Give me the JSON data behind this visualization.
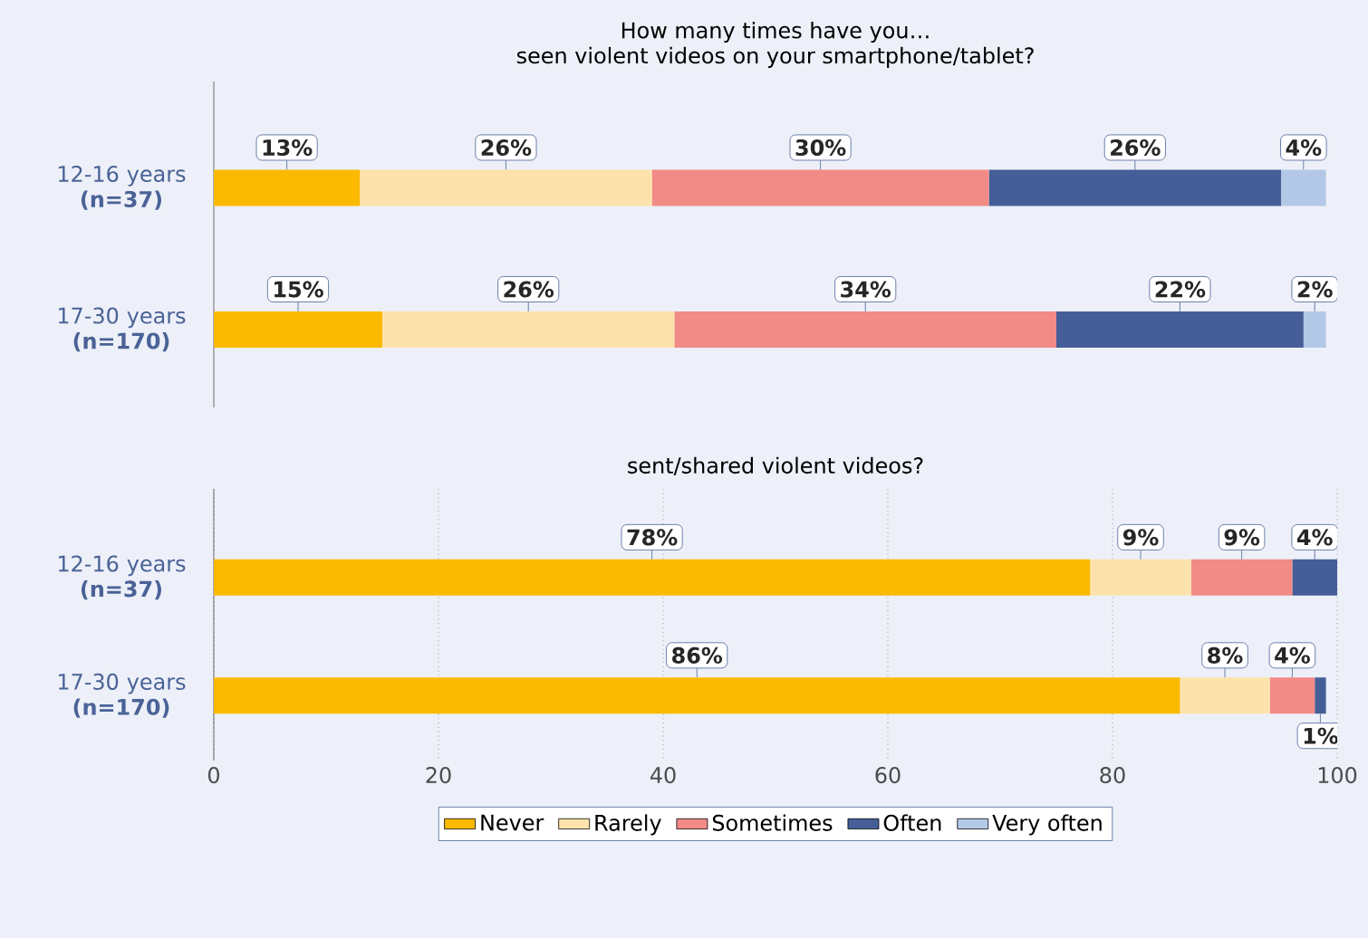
{
  "chart_data": [
    {
      "type": "bar",
      "orientation": "horizontal",
      "stacked": true,
      "title": "How many times have you…",
      "subtitle": "seen violent videos on your smartphone/tablet?",
      "categories": [
        "12-16 years **(n=37)**",
        "17-30 years **(n=170)**"
      ],
      "xlim": [
        0,
        100
      ],
      "xticks": [
        0,
        20,
        40,
        60,
        80,
        100
      ],
      "grid": "x",
      "tick_labels": "y",
      "legend": false,
      "series": [
        {
          "color": "#fbb900",
          "values": [
            13,
            15
          ],
          "value_labels": [
            "13%",
            "15%"
          ]
        },
        {
          "color": "#fde3ab",
          "values": [
            26,
            26
          ],
          "value_labels": [
            "26%",
            "26%"
          ]
        },
        {
          "color": "#f28a86",
          "values": [
            30,
            34
          ],
          "value_labels": [
            "30%",
            "34%"
          ]
        },
        {
          "color": "#455e97",
          "values": [
            26,
            22
          ],
          "value_labels": [
            "26%",
            "22%"
          ]
        },
        {
          "color": "#b3c8e6",
          "values": [
            4,
            2
          ],
          "value_labels": [
            "4%",
            "2%"
          ]
        }
      ]
    },
    {
      "type": "bar",
      "orientation": "horizontal",
      "stacked": true,
      "title": "sent/shared violent videos?",
      "categories": [
        "12-16 years **(n=37)**",
        "17-30 years **(n=170)**"
      ],
      "xlim": [
        0,
        100
      ],
      "xticks": [
        0,
        20,
        40,
        60,
        80,
        100
      ],
      "grid": "x",
      "legend": "bottom",
      "series": [
        {
          "name": "Never",
          "color": "#fbb900",
          "values": [
            78,
            86
          ],
          "value_labels": [
            "78%",
            "86%"
          ]
        },
        {
          "name": "Rarely",
          "color": "#fde3ab",
          "values": [
            9,
            8
          ],
          "value_labels": [
            "9%",
            "8%"
          ]
        },
        {
          "name": "Sometimes",
          "color": "#f28a86",
          "values": [
            9,
            4
          ],
          "value_labels": [
            "9%",
            "4%"
          ]
        },
        {
          "name": "Often",
          "color": "#455e97",
          "values": [
            4,
            1
          ],
          "value_labels": [
            "4%",
            "1%"
          ]
        },
        {
          "name": "Very often",
          "color": "#b3c8e6",
          "values": [
            null,
            null
          ],
          "value_labels": [
            null,
            null
          ]
        }
      ]
    }
  ]
}
